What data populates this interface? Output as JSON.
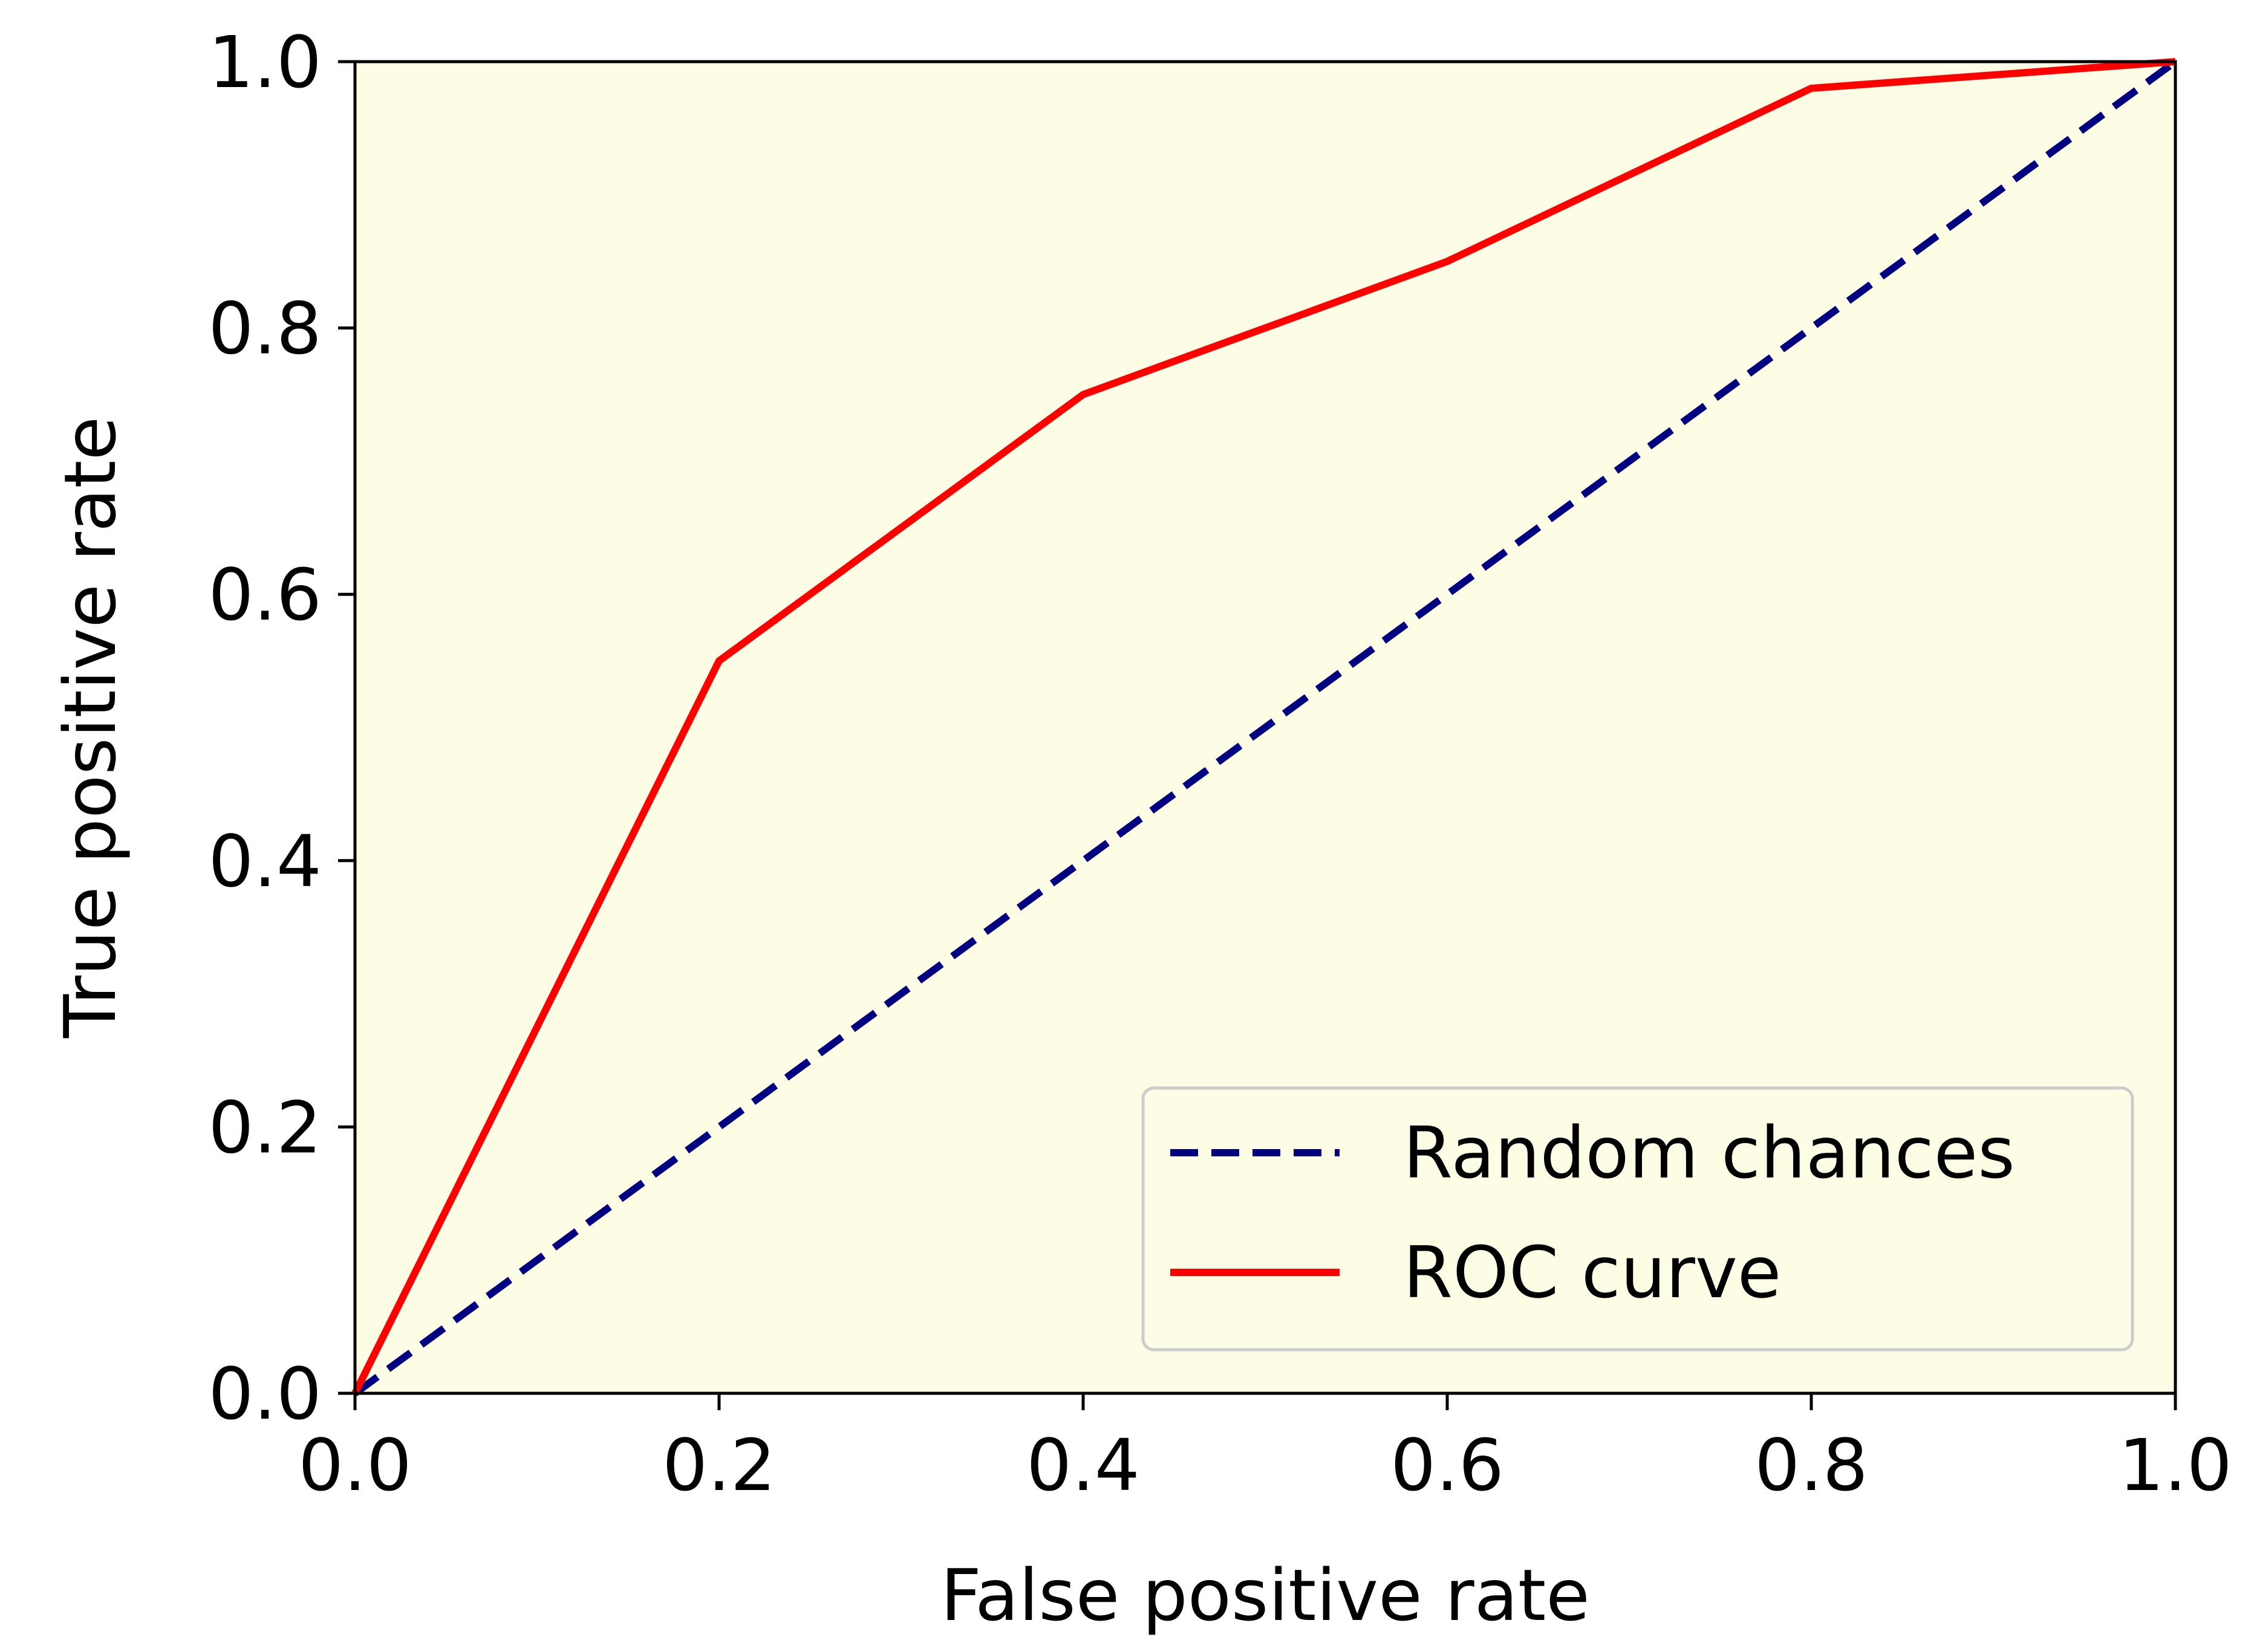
{
  "chart_data": {
    "type": "line",
    "title": "",
    "xlabel": "False positive rate",
    "ylabel": "True positive rate",
    "xlim": [
      0.0,
      1.0
    ],
    "ylim": [
      0.0,
      1.0
    ],
    "xticks": [
      "0.0",
      "0.2",
      "0.4",
      "0.6",
      "0.8",
      "1.0"
    ],
    "yticks": [
      "0.0",
      "0.2",
      "0.4",
      "0.6",
      "0.8",
      "1.0"
    ],
    "grid": false,
    "legend_position": "lower-right",
    "plot_background": "#fdfde6",
    "series": [
      {
        "name": "Random chances",
        "style": "dashed",
        "color": "#000080",
        "x": [
          0.0,
          1.0
        ],
        "y": [
          0.0,
          1.0
        ]
      },
      {
        "name": "ROC curve",
        "style": "solid",
        "color": "#ff0000",
        "x": [
          0.0,
          0.2,
          0.4,
          0.6,
          0.8,
          1.0
        ],
        "y": [
          0.0,
          0.55,
          0.75,
          0.85,
          0.98,
          1.0
        ]
      }
    ]
  }
}
